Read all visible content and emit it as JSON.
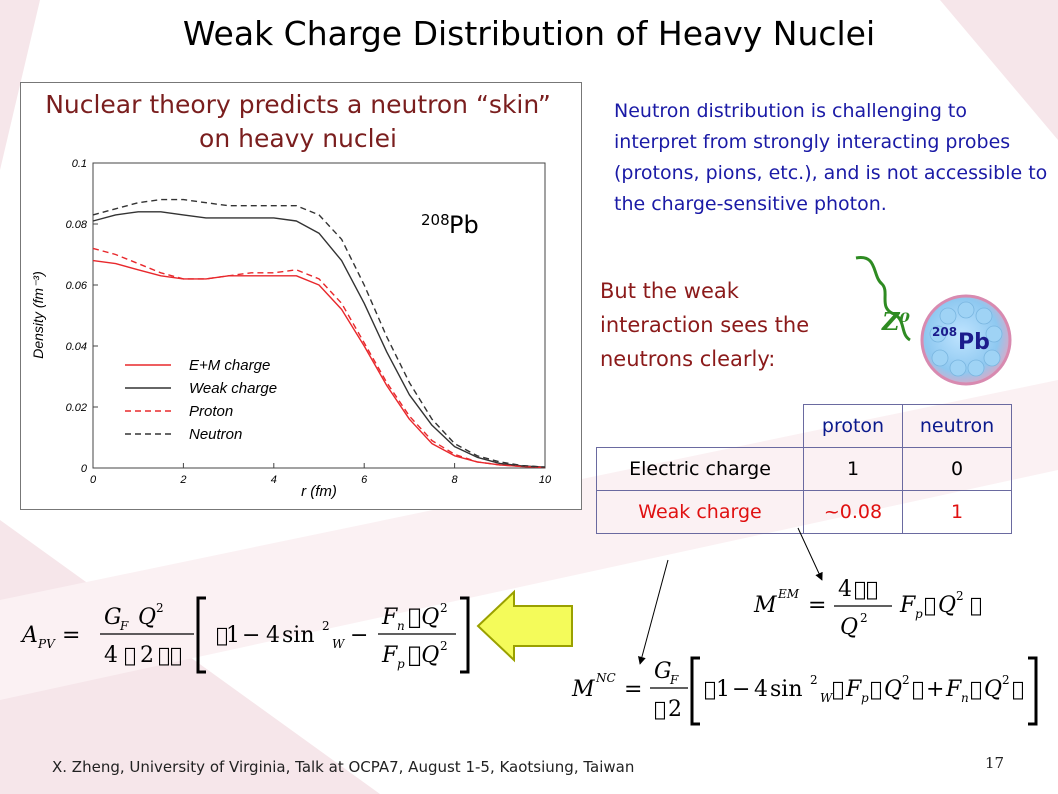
{
  "slide": {
    "title": "Weak Charge Distribution of Heavy Nuclei",
    "footer": "X. Zheng, University of Virginia,  Talk at OCPA7, August 1-5, Kaotsiung, Taiwan",
    "page_number": "17"
  },
  "plot": {
    "caption": "Nuclear theory predicts a neutron “skin” on heavy nuclei",
    "nucleus_sup": "208",
    "nucleus_sym": "Pb"
  },
  "chart_data": {
    "type": "line",
    "title": "",
    "xlabel": "r (fm)",
    "ylabel": "Density (fm⁻³)",
    "xlim": [
      0,
      10
    ],
    "ylim": [
      0,
      0.1
    ],
    "xticks": [
      "0",
      "2",
      "4",
      "6",
      "8",
      "10"
    ],
    "yticks": [
      "0",
      "0.02",
      "0.04",
      "0.06",
      "0.08",
      "0.1"
    ],
    "legend_position": "bottom-left",
    "series": [
      {
        "name": "E+M charge",
        "color": "#e8282c",
        "dash": false,
        "x": [
          0,
          0.5,
          1.0,
          1.5,
          2.0,
          2.5,
          3.0,
          3.5,
          4.0,
          4.5,
          5.0,
          5.5,
          6.0,
          6.5,
          7.0,
          7.5,
          8.0,
          8.5,
          9.0,
          9.5,
          10.0
        ],
        "y": [
          0.068,
          0.067,
          0.065,
          0.063,
          0.062,
          0.062,
          0.063,
          0.063,
          0.063,
          0.063,
          0.06,
          0.052,
          0.04,
          0.027,
          0.016,
          0.008,
          0.004,
          0.002,
          0.001,
          0.0005,
          0.0002
        ]
      },
      {
        "name": "Weak charge",
        "color": "#333333",
        "dash": false,
        "x": [
          0,
          0.5,
          1.0,
          1.5,
          2.0,
          2.5,
          3.0,
          3.5,
          4.0,
          4.5,
          5.0,
          5.5,
          6.0,
          6.5,
          7.0,
          7.5,
          8.0,
          8.5,
          9.0,
          9.5,
          10.0
        ],
        "y": [
          0.081,
          0.083,
          0.084,
          0.084,
          0.083,
          0.082,
          0.082,
          0.082,
          0.082,
          0.081,
          0.077,
          0.068,
          0.054,
          0.038,
          0.024,
          0.014,
          0.007,
          0.0035,
          0.0015,
          0.0007,
          0.0003
        ]
      },
      {
        "name": "Proton",
        "color": "#e8282c",
        "dash": true,
        "x": [
          0,
          0.5,
          1.0,
          1.5,
          2.0,
          2.5,
          3.0,
          3.5,
          4.0,
          4.5,
          5.0,
          5.5,
          6.0,
          6.5,
          7.0,
          7.5,
          8.0,
          8.5,
          9.0,
          9.5,
          10.0
        ],
        "y": [
          0.072,
          0.07,
          0.067,
          0.064,
          0.062,
          0.062,
          0.063,
          0.064,
          0.064,
          0.065,
          0.062,
          0.054,
          0.041,
          0.028,
          0.017,
          0.009,
          0.0045,
          0.002,
          0.001,
          0.0005,
          0.0002
        ]
      },
      {
        "name": "Neutron",
        "color": "#333333",
        "dash": true,
        "x": [
          0,
          0.5,
          1.0,
          1.5,
          2.0,
          2.5,
          3.0,
          3.5,
          4.0,
          4.5,
          5.0,
          5.5,
          6.0,
          6.5,
          7.0,
          7.5,
          8.0,
          8.5,
          9.0,
          9.5,
          10.0
        ],
        "y": [
          0.083,
          0.085,
          0.087,
          0.088,
          0.088,
          0.087,
          0.086,
          0.086,
          0.086,
          0.086,
          0.083,
          0.075,
          0.06,
          0.043,
          0.028,
          0.016,
          0.008,
          0.004,
          0.002,
          0.0008,
          0.0003
        ]
      }
    ]
  },
  "text": {
    "intro": "Neutron distribution is challenging to interpret from strongly interacting probes (protons, pions, etc.), and is not accessible to the charge-sensitive photon.",
    "weak": "But the weak interaction sees the neutrons clearly:",
    "z0_label": "Z⁰",
    "ball_sup": "208",
    "ball_sym": "Pb"
  },
  "table": {
    "headers": [
      "",
      "proton",
      "neutron"
    ],
    "rows": [
      {
        "label": "Electric charge",
        "proton": "1",
        "neutron": "0"
      },
      {
        "label": "Weak charge",
        "proton": "~0.08",
        "neutron": "1"
      }
    ]
  },
  "equations": {
    "apv": {
      "lhs_A": "A",
      "lhs_sub": "PV",
      "eq": "=",
      "num_G": "G",
      "num_Gsub": "F",
      "num_Q": "Q",
      "sq": "2",
      "den_4": "4",
      "den_box": "\u0000",
      "den_2": "2",
      "den_boxes": "\u0000\u0000",
      "one": "1",
      "minus": "−",
      "four": "4",
      "sin": "sin",
      "w_sub": "W",
      "minus2": "−",
      "Fn": "F",
      "Fn_sub": "n",
      "Fp": "F",
      "Fp_sub": "p",
      "Qbox": "\u0000Q",
      "close": "\u0000",
      "box": "\u0000"
    },
    "mem": {
      "M": "M",
      "sup": "EM",
      "eq": "=",
      "num": "4",
      "num_boxes": "\u0000\u0000",
      "Q": "Q",
      "sq": "2",
      "F": "F",
      "F_sub": "p",
      "Qarg": "Q",
      "box": "\u0000"
    },
    "mnc": {
      "M": "M",
      "sup": "NC",
      "eq": "=",
      "G": "G",
      "G_sub": "F",
      "den_box": "\u0000",
      "den_2": "2",
      "one": "1",
      "minus": "−",
      "four": "4",
      "sin": "sin",
      "sq": "2",
      "w_sub": "W",
      "Fp": "F",
      "Fp_sub": "p",
      "Q": "Q",
      "plus": "+",
      "Fn": "F",
      "Fn_sub": "n",
      "box": "\u0000"
    }
  },
  "colors": {
    "background_band": "#f6e6ea",
    "arrow_fill": "#f4fb5a",
    "arrow_stroke": "#9aa000"
  }
}
